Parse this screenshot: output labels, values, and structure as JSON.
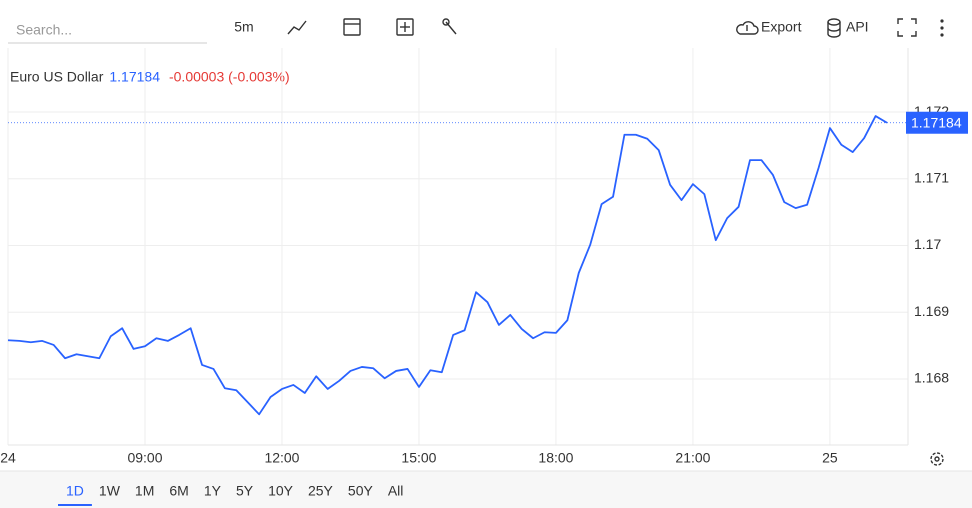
{
  "toolbar": {
    "search_placeholder": "Search...",
    "interval": "5m",
    "export": "Export",
    "api": "API"
  },
  "header": {
    "name": "Euro US Dollar",
    "change": "-0.00003 (-0.003%)"
  },
  "ranges": [
    "1D",
    "1W",
    "1M",
    "6M",
    "1Y",
    "5Y",
    "10Y",
    "25Y",
    "50Y",
    "All"
  ],
  "chart_data": {
    "type": "line",
    "last_price": 1.17184,
    "x": [
      6,
      6.25,
      6.5,
      6.75,
      7,
      7.25,
      7.5,
      7.75,
      8,
      8.25,
      8.5,
      8.75,
      9,
      9.25,
      9.5,
      9.75,
      10,
      10.25,
      10.5,
      10.75,
      11,
      11.25,
      11.5,
      11.75,
      12,
      12.25,
      12.5,
      12.75,
      13,
      13.25,
      13.5,
      13.75,
      14,
      14.25,
      14.5,
      14.75,
      15,
      15.25,
      15.5,
      15.75,
      16,
      16.25,
      16.5,
      16.75,
      17,
      17.25,
      17.5,
      17.75,
      18,
      18.25,
      18.5,
      18.75,
      19,
      19.25,
      19.5,
      19.75,
      20,
      20.25,
      20.5,
      20.75,
      21,
      21.25,
      21.5,
      21.75,
      22,
      22.25,
      22.5,
      22.75,
      23,
      23.25,
      23.5,
      23.75,
      24,
      24.25,
      24.5,
      24.75,
      25,
      25.25
    ],
    "series": [
      {
        "name": "Euro US Dollar",
        "color": "#2962ff",
        "values": [
          1.16858,
          1.16857,
          1.16855,
          1.16857,
          1.16851,
          1.16831,
          1.16837,
          1.16834,
          1.16831,
          1.16864,
          1.16876,
          1.16845,
          1.16849,
          1.16861,
          1.16857,
          1.16866,
          1.16876,
          1.16821,
          1.16815,
          1.16786,
          1.16783,
          1.16765,
          1.16747,
          1.16773,
          1.16785,
          1.16791,
          1.16779,
          1.16804,
          1.16785,
          1.16797,
          1.16812,
          1.16818,
          1.16816,
          1.16801,
          1.16812,
          1.16815,
          1.16788,
          1.16813,
          1.1681,
          1.16866,
          1.16873,
          1.1693,
          1.16915,
          1.16881,
          1.16896,
          1.16875,
          1.16861,
          1.1687,
          1.16869,
          1.16888,
          1.16959,
          1.17001,
          1.17062,
          1.17073,
          1.17166,
          1.17166,
          1.1716,
          1.17143,
          1.17091,
          1.17068,
          1.17092,
          1.17077,
          1.17008,
          1.17041,
          1.17058,
          1.17128,
          1.17128,
          1.17106,
          1.17065,
          1.17056,
          1.17061,
          1.17116,
          1.17176,
          1.17151,
          1.1714,
          1.17161,
          1.17194,
          1.17184
        ]
      }
    ],
    "xlim": [
      6,
      25.71
    ],
    "xticks": [
      {
        "value": 6,
        "label": "24"
      },
      {
        "value": 9,
        "label": "09:00"
      },
      {
        "value": 12,
        "label": "12:00"
      },
      {
        "value": 15,
        "label": "15:00"
      },
      {
        "value": 18,
        "label": "18:00"
      },
      {
        "value": 21,
        "label": "21:00"
      },
      {
        "value": 24,
        "label": "25"
      }
    ],
    "ylim": [
      1.16701,
      1.17296
    ],
    "yticks": [
      1.168,
      1.169,
      1.17,
      1.171,
      1.172
    ],
    "grid": true
  }
}
